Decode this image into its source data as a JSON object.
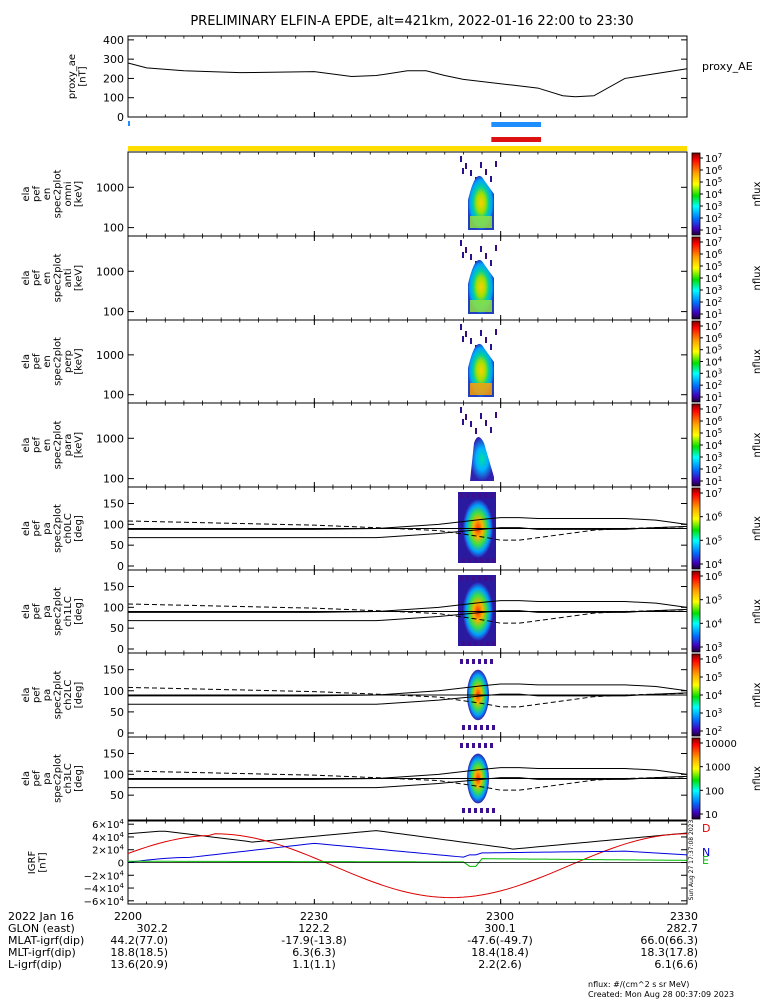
{
  "title": "PRELIMINARY ELFIN-A EPDE, alt=421km, 2022-01-16 22:00 to 23:30",
  "chart_data": [
    {
      "type": "line",
      "panel": "proxy_ae",
      "ylabel_lines": [
        "proxy_ae",
        "[nT]"
      ],
      "legend_label": "proxy_AE",
      "yticks": [
        "400",
        "300",
        "200",
        "100",
        "0"
      ],
      "ylim": [
        0,
        420
      ],
      "x_minutes": [
        0,
        3,
        9,
        18,
        30,
        36,
        40,
        45,
        48,
        51,
        54,
        62,
        66,
        70,
        72,
        75,
        80,
        90
      ],
      "series": [
        {
          "values": [
            280,
            255,
            240,
            230,
            235,
            210,
            215,
            240,
            240,
            215,
            195,
            165,
            150,
            110,
            105,
            110,
            200,
            250
          ]
        }
      ]
    },
    {
      "type": "heatmap",
      "panel": "energy-spectrogram",
      "ylabel_lines": [
        "ela",
        "pef",
        "en",
        "spec2plot",
        "omni",
        "[keV]"
      ],
      "yticks": [
        "1000",
        "100"
      ],
      "colorbar_label": "nflux",
      "colorbar_ticks": [
        "10^7",
        "10^6",
        "10^5",
        "10^4",
        "10^3",
        "10^2",
        "10^1"
      ]
    },
    {
      "type": "heatmap",
      "panel": "energy-spectrogram",
      "ylabel_lines": [
        "ela",
        "pef",
        "en",
        "spec2plot",
        "anti",
        "[keV]"
      ],
      "yticks": [
        "1000",
        "100"
      ],
      "colorbar_label": "nflux",
      "colorbar_ticks": [
        "10^7",
        "10^6",
        "10^5",
        "10^4",
        "10^3",
        "10^2",
        "10^1"
      ]
    },
    {
      "type": "heatmap",
      "panel": "energy-spectrogram",
      "ylabel_lines": [
        "ela",
        "pef",
        "en",
        "spec2plot",
        "perp",
        "[keV]"
      ],
      "yticks": [
        "1000",
        "100"
      ],
      "colorbar_label": "nflux",
      "colorbar_ticks": [
        "10^7",
        "10^6",
        "10^5",
        "10^4",
        "10^3",
        "10^2",
        "10^1"
      ]
    },
    {
      "type": "heatmap",
      "panel": "energy-spectrogram",
      "ylabel_lines": [
        "ela",
        "pef",
        "en",
        "spec2plot",
        "para",
        "[keV]"
      ],
      "yticks": [
        "1000",
        "100"
      ],
      "colorbar_label": "nflux",
      "colorbar_ticks": [
        "10^7",
        "10^6",
        "10^5",
        "10^4",
        "10^3",
        "10^2",
        "10^1"
      ]
    },
    {
      "type": "heatmap",
      "panel": "pitch-angle-spectrogram",
      "ylabel_lines": [
        "ela",
        "pef",
        "pa",
        "spec2plot",
        "ch0LC",
        "[deg]"
      ],
      "yticks": [
        "150",
        "100",
        "50",
        "0"
      ],
      "ylim": [
        0,
        180
      ],
      "colorbar_label": "nflux",
      "colorbar_ticks": [
        "10^7",
        "10^6",
        "10^5",
        "10^4"
      ]
    },
    {
      "type": "heatmap",
      "panel": "pitch-angle-spectrogram",
      "ylabel_lines": [
        "ela",
        "pef",
        "pa",
        "spec2plot",
        "ch1LC",
        "[deg]"
      ],
      "yticks": [
        "150",
        "100",
        "50",
        "0"
      ],
      "ylim": [
        0,
        180
      ],
      "colorbar_label": "nflux",
      "colorbar_ticks": [
        "10^6",
        "10^5",
        "10^4",
        "10^3"
      ]
    },
    {
      "type": "heatmap",
      "panel": "pitch-angle-spectrogram",
      "ylabel_lines": [
        "ela",
        "pef",
        "pa",
        "spec2plot",
        "ch2LC",
        "[deg]"
      ],
      "yticks": [
        "150",
        "100",
        "50",
        "0"
      ],
      "ylim": [
        0,
        180
      ],
      "colorbar_label": "nflux",
      "colorbar_ticks": [
        "10^6",
        "10^5",
        "10^4",
        "10^3",
        "10^2"
      ]
    },
    {
      "type": "heatmap",
      "panel": "pitch-angle-spectrogram",
      "ylabel_lines": [
        "ela",
        "pef",
        "pa",
        "spec2plot",
        "ch3LC",
        "[deg]"
      ],
      "yticks": [
        "150",
        "100",
        "50"
      ],
      "ylim": [
        0,
        180
      ],
      "colorbar_label": "nflux",
      "colorbar_ticks": [
        "10000",
        "1000",
        "100",
        "10"
      ]
    },
    {
      "type": "line",
      "panel": "igrf",
      "ylabel_lines": [
        "IGRF",
        "[nT]"
      ],
      "yticks": [
        "6×10^4",
        "4×10^4",
        "2×10^4",
        "0",
        "−2×10^4",
        "−4×10^4",
        "−6×10^4"
      ],
      "ylim": [
        -65000,
        65000
      ],
      "series": [
        {
          "name": "D",
          "color": "#dd0000"
        },
        {
          "name": "N",
          "color": "#0000dd"
        },
        {
          "name": "E",
          "color": "#00bb00"
        }
      ],
      "side_note": "Sun Aug 27 17:37:08 2023"
    }
  ],
  "ephemeris": {
    "rows": [
      [
        "2022 Jan 16",
        "2200",
        "2230",
        "2300",
        "2330"
      ],
      [
        "GLON (east)",
        "302.2",
        "122.2",
        "300.1",
        "282.7"
      ],
      [
        "MLAT-igrf(dip)",
        "44.2(77.0)",
        "-17.9(-13.8)",
        "-47.6(-49.7)",
        "66.0(66.3)"
      ],
      [
        "MLT-igrf(dip)",
        "18.8(18.5)",
        "6.3(6.3)",
        "18.4(18.4)",
        "18.3(17.8)"
      ],
      [
        "L-igrf(dip)",
        "13.6(20.9)",
        "1.1(1.1)",
        "2.2(2.6)",
        "6.1(6.6)"
      ]
    ]
  },
  "footer": {
    "units": "nflux: #/(cm^2 s sr MeV)",
    "created": "Created: Mon Aug 28 00:37:09 2023"
  },
  "colors": {
    "status_bar": "#ffdd00",
    "blue_marker": "#1f8fff",
    "red_marker": "#dd1111"
  }
}
